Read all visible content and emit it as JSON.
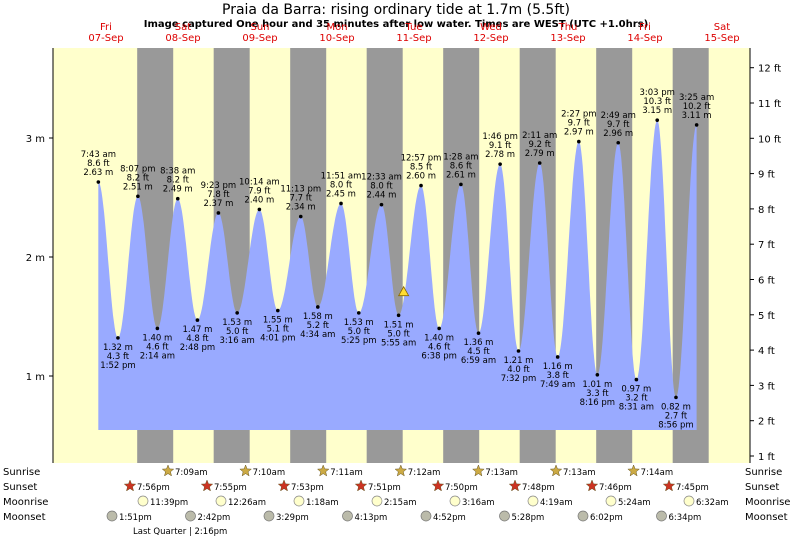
{
  "title": "Praia da Barra: rising  ordinary tide at 1.7m (5.5ft)",
  "subtitle": "Image captured One hour and 35 minutes after low water. Times are WEST (UTC +1.0hrs)",
  "colors": {
    "day": "#ffffcc",
    "night": "#999999",
    "water": "#99aaff",
    "daylabel": "#dd0000",
    "sun": "#ccaa44",
    "sunset": "#cc3322",
    "moon": "#ffffcc",
    "moonset": "#bbbbaa"
  },
  "days": [
    {
      "dow": "Fri",
      "date": "07-Sep"
    },
    {
      "dow": "Sat",
      "date": "08-Sep"
    },
    {
      "dow": "Sun",
      "date": "09-Sep"
    },
    {
      "dow": "Mon",
      "date": "10-Sep"
    },
    {
      "dow": "Tue",
      "date": "11-Sep"
    },
    {
      "dow": "Wed",
      "date": "12-Sep"
    },
    {
      "dow": "Thu",
      "date": "13-Sep"
    },
    {
      "dow": "Fri",
      "date": "14-Sep"
    },
    {
      "dow": "Sat",
      "date": "15-Sep"
    }
  ],
  "row_labels": {
    "sunrise": "Sunrise",
    "sunset": "Sunset",
    "moonrise": "Moonrise",
    "moonset": "Moonset"
  },
  "sunrise": [
    "7:09am",
    "7:10am",
    "7:11am",
    "7:12am",
    "7:13am",
    "7:13am",
    "7:14am"
  ],
  "sunset": [
    "7:56pm",
    "7:55pm",
    "7:53pm",
    "7:51pm",
    "7:50pm",
    "7:48pm",
    "7:46pm",
    "7:45pm"
  ],
  "moonrise": [
    "11:39pm",
    "12:26am",
    "1:18am",
    "2:15am",
    "3:16am",
    "4:19am",
    "5:24am",
    "6:32am"
  ],
  "moonset": [
    "1:51pm",
    "2:42pm",
    "3:29pm",
    "4:13pm",
    "4:52pm",
    "5:28pm",
    "6:02pm",
    "6:34pm"
  ],
  "moon_phase": "Last Quarter | 2:16pm",
  "chart_data": {
    "type": "area",
    "left_axis": {
      "unit": "m",
      "ticks": [
        "1 m",
        "2 m",
        "3 m"
      ],
      "values": [
        1,
        2,
        3
      ]
    },
    "right_axis": {
      "unit": "ft",
      "ticks": [
        "1 ft",
        "2 ft",
        "3 ft",
        "4 ft",
        "5 ft",
        "6 ft",
        "7 ft",
        "8 ft",
        "9 ft",
        "10 ft",
        "11 ft",
        "12 ft"
      ],
      "values": [
        1,
        2,
        3,
        4,
        5,
        6,
        7,
        8,
        9,
        10,
        11,
        12
      ]
    },
    "current_level": {
      "m": 1.7,
      "ft": 5.5
    },
    "extremes": [
      {
        "type": "high",
        "time": "7:43 am",
        "ft": "8.6 ft",
        "m": "2.63 m",
        "h": 2.63
      },
      {
        "type": "low",
        "time": "1:52 pm",
        "ft": "4.3 ft",
        "m": "1.32 m",
        "h": 1.32
      },
      {
        "type": "high",
        "time": "8:07 pm",
        "ft": "8.2 ft",
        "m": "2.51 m",
        "h": 2.51
      },
      {
        "type": "low",
        "time": "2:14 am",
        "ft": "4.6 ft",
        "m": "1.40 m",
        "h": 1.4
      },
      {
        "type": "high",
        "time": "8:38 am",
        "ft": "8.2 ft",
        "m": "2.49 m",
        "h": 2.49
      },
      {
        "type": "low",
        "time": "2:48 pm",
        "ft": "4.8 ft",
        "m": "1.47 m",
        "h": 1.47
      },
      {
        "type": "high",
        "time": "9:23 pm",
        "ft": "7.8 ft",
        "m": "2.37 m",
        "h": 2.37
      },
      {
        "type": "low",
        "time": "3:16 am",
        "ft": "5.0 ft",
        "m": "1.53 m",
        "h": 1.53
      },
      {
        "type": "high",
        "time": "10:14 am",
        "ft": "7.9 ft",
        "m": "2.40 m",
        "h": 2.4
      },
      {
        "type": "low",
        "time": "4:01 pm",
        "ft": "5.1 ft",
        "m": "1.55 m",
        "h": 1.55
      },
      {
        "type": "high",
        "time": "11:13 pm",
        "ft": "7.7 ft",
        "m": "2.34 m",
        "h": 2.34
      },
      {
        "type": "low",
        "time": "4:34 am",
        "ft": "5.2 ft",
        "m": "1.58 m",
        "h": 1.58
      },
      {
        "type": "high",
        "time": "11:51 am",
        "ft": "8.0 ft",
        "m": "2.45 m",
        "h": 2.45
      },
      {
        "type": "low",
        "time": "5:25 pm",
        "ft": "5.0 ft",
        "m": "1.53 m",
        "h": 1.53
      },
      {
        "type": "high",
        "time": "12:33 am",
        "ft": "8.0 ft",
        "m": "2.44 m",
        "h": 2.44
      },
      {
        "type": "low",
        "time": "5:55 am",
        "ft": "5.0 ft",
        "m": "1.51 m",
        "h": 1.51
      },
      {
        "type": "high",
        "time": "12:57 pm",
        "ft": "8.5 ft",
        "m": "2.60 m",
        "h": 2.6
      },
      {
        "type": "low",
        "time": "6:38 pm",
        "ft": "4.6 ft",
        "m": "1.40 m",
        "h": 1.4
      },
      {
        "type": "high",
        "time": "1:28 am",
        "ft": "8.6 ft",
        "m": "2.61 m",
        "h": 2.61
      },
      {
        "type": "low",
        "time": "6:59 am",
        "ft": "4.5 ft",
        "m": "1.36 m",
        "h": 1.36
      },
      {
        "type": "high",
        "time": "1:46 pm",
        "ft": "9.1 ft",
        "m": "2.78 m",
        "h": 2.78
      },
      {
        "type": "low",
        "time": "7:32 pm",
        "ft": "4.0 ft",
        "m": "1.21 m",
        "h": 1.21
      },
      {
        "type": "high",
        "time": "2:11 am",
        "ft": "9.2 ft",
        "m": "2.79 m",
        "h": 2.79
      },
      {
        "type": "low",
        "time": "7:49 am",
        "ft": "3.8 ft",
        "m": "1.16 m",
        "h": 1.16
      },
      {
        "type": "high",
        "time": "2:27 pm",
        "ft": "9.7 ft",
        "m": "2.97 m",
        "h": 2.97
      },
      {
        "type": "low",
        "time": "8:16 pm",
        "ft": "3.3 ft",
        "m": "1.01 m",
        "h": 1.01
      },
      {
        "type": "high",
        "time": "2:49 am",
        "ft": "9.7 ft",
        "m": "2.96 m",
        "h": 2.96
      },
      {
        "type": "low",
        "time": "8:31 am",
        "ft": "3.2 ft",
        "m": "0.97 m",
        "h": 0.97
      },
      {
        "type": "high",
        "time": "3:03 pm",
        "ft": "10.3 ft",
        "m": "3.15 m",
        "h": 3.15
      },
      {
        "type": "low",
        "time": "8:56 pm",
        "ft": "2.7 ft",
        "m": "0.82 m",
        "h": 0.82
      },
      {
        "type": "high",
        "time": "3:25 am",
        "ft": "10.2 ft",
        "m": "3.11 m",
        "h": 3.11
      }
    ]
  }
}
